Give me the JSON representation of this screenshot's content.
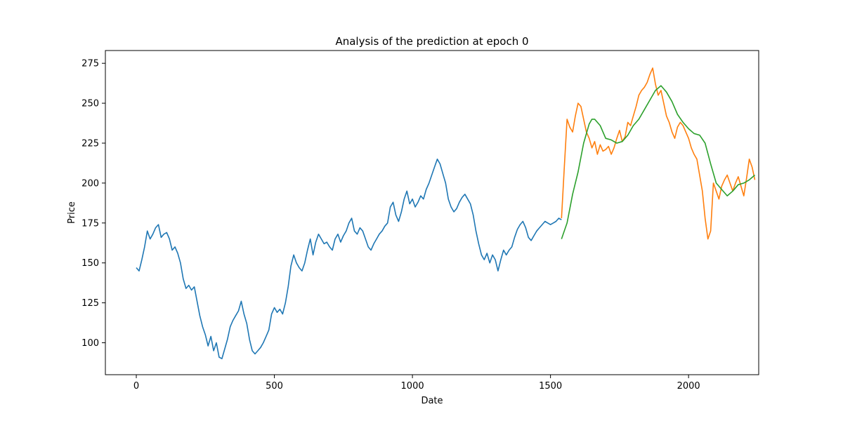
{
  "chart_data": {
    "type": "line",
    "title": "Analysis of the prediction at epoch 0",
    "xlabel": "Date",
    "ylabel": "Price",
    "xlim": [
      -112,
      2254
    ],
    "ylim": [
      80,
      283
    ],
    "xticks": [
      0,
      500,
      1000,
      1500,
      2000
    ],
    "yticks": [
      100,
      125,
      150,
      175,
      200,
      225,
      250,
      275
    ],
    "grid": false,
    "legend": "none",
    "series": [
      {
        "color": "#1f77b4",
        "x": [
          0,
          10,
          20,
          30,
          40,
          50,
          60,
          70,
          80,
          90,
          100,
          110,
          120,
          130,
          140,
          150,
          160,
          170,
          180,
          190,
          200,
          210,
          220,
          230,
          240,
          250,
          260,
          270,
          280,
          290,
          300,
          310,
          320,
          330,
          340,
          350,
          360,
          370,
          380,
          390,
          400,
          410,
          420,
          430,
          440,
          450,
          460,
          470,
          480,
          490,
          500,
          510,
          520,
          530,
          540,
          550,
          560,
          570,
          580,
          590,
          600,
          610,
          620,
          630,
          640,
          650,
          660,
          670,
          680,
          690,
          700,
          710,
          720,
          730,
          740,
          750,
          760,
          770,
          780,
          790,
          800,
          810,
          820,
          830,
          840,
          850,
          860,
          870,
          880,
          890,
          900,
          910,
          920,
          930,
          940,
          950,
          960,
          970,
          980,
          990,
          1000,
          1010,
          1020,
          1030,
          1040,
          1050,
          1060,
          1070,
          1080,
          1090,
          1100,
          1110,
          1120,
          1130,
          1140,
          1150,
          1160,
          1170,
          1180,
          1190,
          1200,
          1210,
          1220,
          1230,
          1240,
          1250,
          1260,
          1270,
          1280,
          1290,
          1300,
          1310,
          1320,
          1330,
          1340,
          1350,
          1360,
          1370,
          1380,
          1390,
          1400,
          1410,
          1420,
          1430,
          1440,
          1450,
          1460,
          1470,
          1480,
          1490,
          1500,
          1510,
          1520,
          1530,
          1540
        ],
        "y": [
          147,
          145,
          152,
          160,
          170,
          165,
          168,
          172,
          174,
          166,
          168,
          169,
          165,
          158,
          160,
          156,
          150,
          140,
          134,
          136,
          133,
          135,
          126,
          117,
          110,
          105,
          98,
          104,
          95,
          100,
          91,
          90,
          96,
          102,
          110,
          114,
          117,
          120,
          126,
          118,
          112,
          102,
          95,
          93,
          95,
          97,
          100,
          104,
          108,
          118,
          122,
          119,
          121,
          118,
          125,
          135,
          148,
          155,
          150,
          147,
          145,
          150,
          158,
          165,
          155,
          163,
          168,
          165,
          162,
          163,
          160,
          158,
          165,
          168,
          163,
          167,
          170,
          175,
          178,
          170,
          168,
          172,
          170,
          165,
          160,
          158,
          162,
          165,
          168,
          170,
          173,
          175,
          185,
          188,
          180,
          176,
          182,
          190,
          195,
          187,
          190,
          185,
          188,
          192,
          190,
          196,
          200,
          205,
          210,
          215,
          212,
          206,
          200,
          190,
          185,
          182,
          184,
          188,
          191,
          193,
          190,
          187,
          180,
          170,
          162,
          155,
          152,
          156,
          150,
          155,
          152,
          145,
          152,
          158,
          155,
          158,
          160,
          166,
          171,
          174,
          176,
          172,
          166,
          164,
          167,
          170,
          172,
          174,
          176,
          175,
          174,
          175,
          176,
          178,
          177
        ],
        "note": ""
      },
      {
        "color": "#ff7f0e",
        "x": [
          1540,
          1550,
          1560,
          1570,
          1580,
          1590,
          1600,
          1610,
          1620,
          1630,
          1640,
          1650,
          1660,
          1670,
          1680,
          1690,
          1700,
          1710,
          1720,
          1730,
          1740,
          1750,
          1760,
          1770,
          1780,
          1790,
          1800,
          1810,
          1820,
          1830,
          1840,
          1850,
          1860,
          1870,
          1880,
          1890,
          1900,
          1910,
          1920,
          1930,
          1940,
          1950,
          1960,
          1970,
          1980,
          1990,
          2000,
          2010,
          2020,
          2030,
          2040,
          2050,
          2060,
          2070,
          2080,
          2090,
          2100,
          2110,
          2120,
          2130,
          2140,
          2150,
          2160,
          2170,
          2180,
          2190,
          2200,
          2210,
          2220,
          2230,
          2240
        ],
        "y": [
          178,
          210,
          240,
          235,
          232,
          242,
          250,
          248,
          240,
          232,
          228,
          222,
          226,
          218,
          224,
          220,
          221,
          223,
          218,
          222,
          228,
          233,
          226,
          229,
          238,
          236,
          242,
          248,
          255,
          258,
          260,
          263,
          268,
          272,
          262,
          255,
          258,
          250,
          242,
          238,
          232,
          228,
          235,
          238,
          236,
          232,
          228,
          222,
          218,
          215,
          205,
          195,
          178,
          165,
          170,
          200,
          195,
          190,
          198,
          202,
          205,
          200,
          195,
          200,
          204,
          198,
          192,
          203,
          215,
          210,
          202
        ]
      },
      {
        "color": "#2ca02c",
        "x": [
          1540,
          1560,
          1580,
          1600,
          1620,
          1640,
          1650,
          1660,
          1680,
          1700,
          1720,
          1740,
          1760,
          1780,
          1800,
          1820,
          1840,
          1860,
          1880,
          1900,
          1920,
          1940,
          1960,
          1980,
          2000,
          2020,
          2040,
          2060,
          2080,
          2100,
          2120,
          2140,
          2160,
          2180,
          2200,
          2220,
          2240
        ],
        "y": [
          165,
          175,
          193,
          207,
          225,
          237,
          240,
          240,
          236,
          228,
          227,
          225,
          226,
          230,
          236,
          240,
          246,
          252,
          258,
          261,
          257,
          251,
          243,
          238,
          234,
          231,
          230,
          225,
          212,
          200,
          196,
          192,
          195,
          199,
          200,
          202,
          205
        ]
      }
    ]
  }
}
